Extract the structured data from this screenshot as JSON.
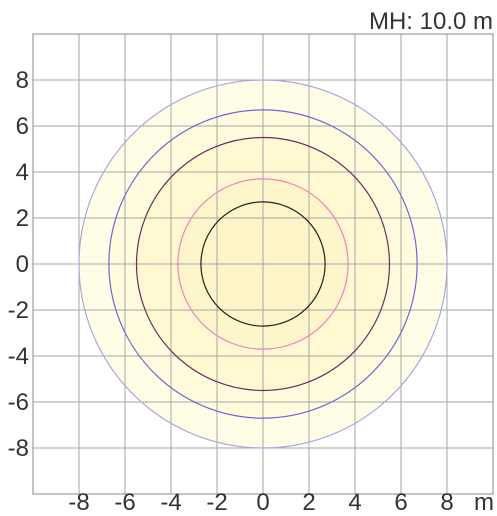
{
  "chart_data": {
    "type": "contour",
    "header_label": "MH: 10.0 m",
    "unit_label": "m",
    "xlim": [
      -10,
      10
    ],
    "ylim": [
      -10,
      10
    ],
    "x_ticks": [
      -8,
      -6,
      -4,
      -2,
      0,
      2,
      4,
      6,
      8
    ],
    "y_ticks": [
      8,
      6,
      4,
      2,
      0,
      -2,
      -4,
      -6,
      -8
    ],
    "x_tick_labels": [
      "-8",
      "-6",
      "-4",
      "-2",
      "0",
      "2",
      "4",
      "6",
      "8"
    ],
    "y_tick_labels": [
      "8",
      "6",
      "4",
      "2",
      "0",
      "-2",
      "-4",
      "-6",
      "-8"
    ],
    "grid": true,
    "center": [
      0,
      0
    ],
    "contours": [
      {
        "radius": 8.0,
        "line_color": "#a9a7de",
        "fill_color": "#fffde6"
      },
      {
        "radius": 6.7,
        "line_color": "#6c68d9",
        "fill_color": "#fffbdc"
      },
      {
        "radius": 5.5,
        "line_color": "#6b2d5e",
        "fill_color": "#fff8d0"
      },
      {
        "radius": 3.7,
        "line_color": "#ee82c0",
        "fill_color": "#fef6cb"
      },
      {
        "radius": 2.7,
        "line_color": "#222222",
        "fill_color": "#fdf4c7"
      }
    ]
  }
}
